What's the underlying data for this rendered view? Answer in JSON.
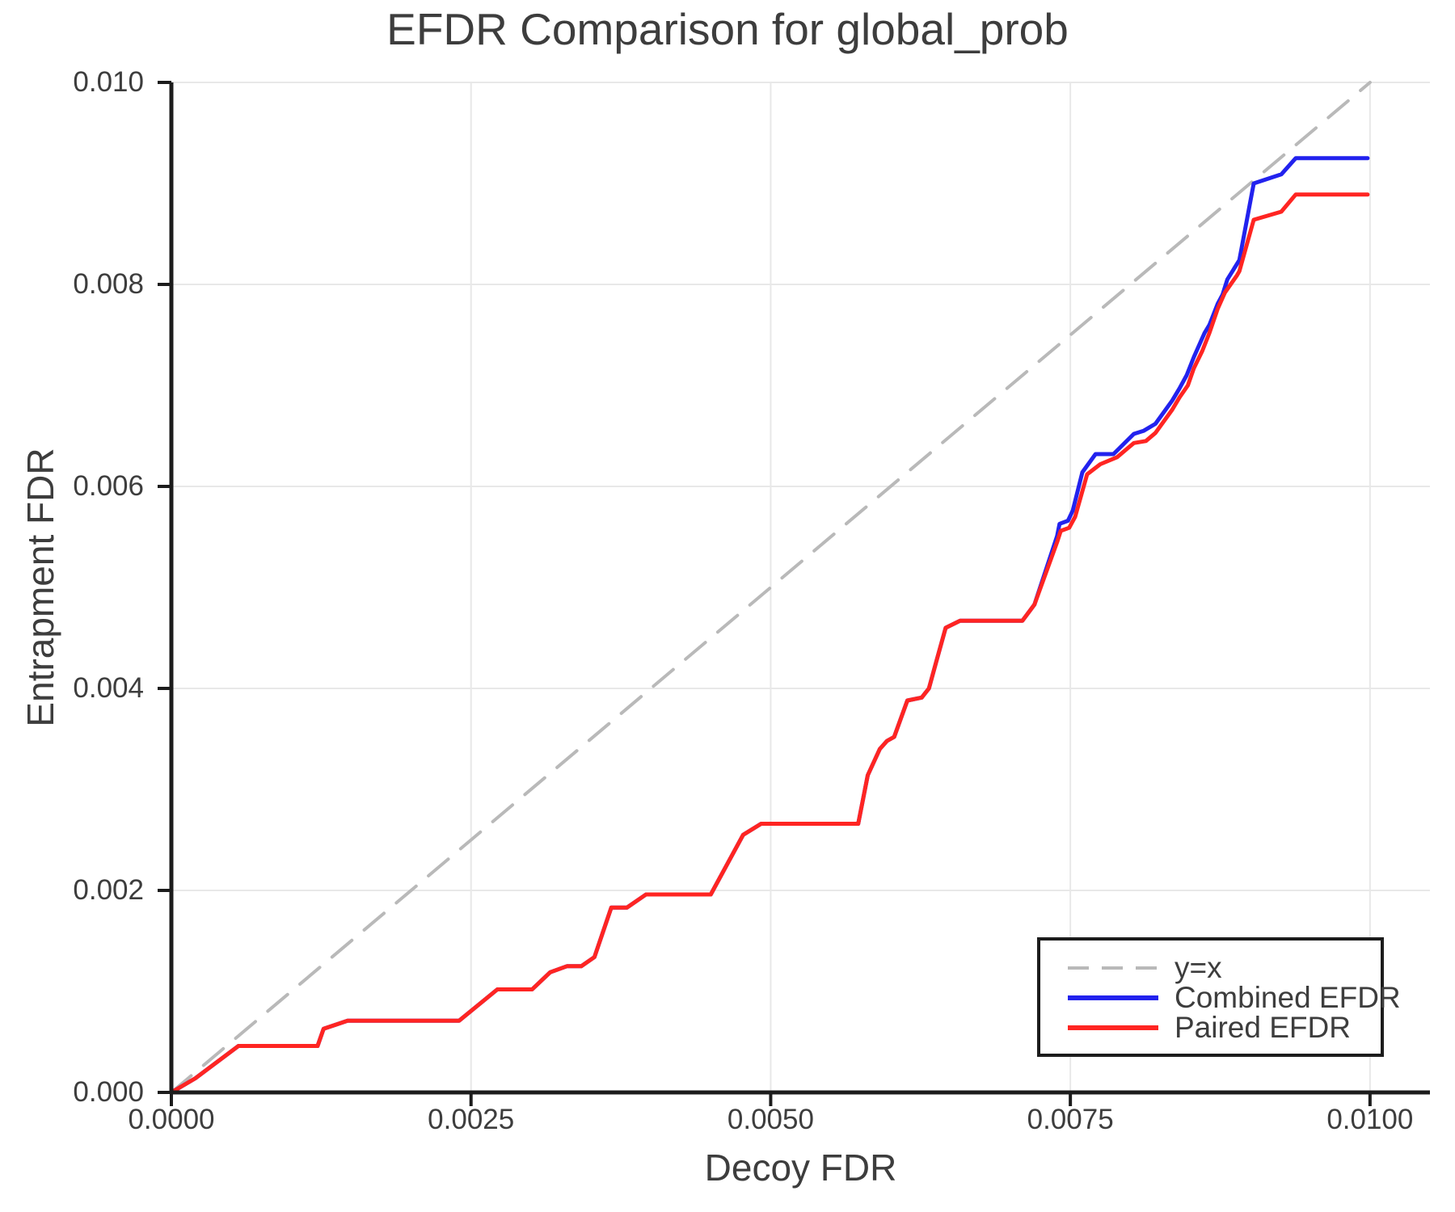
{
  "title": "EFDR Comparison for global_prob",
  "chart_data": {
    "type": "line",
    "title": "EFDR Comparison for global_prob",
    "xlabel": "Decoy FDR",
    "ylabel": "Entrapment FDR",
    "xlim": [
      0,
      0.0105
    ],
    "ylim": [
      0,
      0.01
    ],
    "grid": true,
    "legend_position": "lower right",
    "colors": {
      "identity": "#b9b9b9",
      "combined": "#2222ee",
      "paired": "#ff2522",
      "spine": "#1c1c1c",
      "gridline": "#e8e8e8",
      "text": "#3d3d3d"
    },
    "x_ticks": {
      "values": [
        0,
        0.0025,
        0.005,
        0.0075,
        0.01
      ],
      "labels": [
        "0.0000",
        "0.0025",
        "0.0050",
        "0.0075",
        "0.0100"
      ]
    },
    "y_ticks": {
      "values": [
        0,
        0.002,
        0.004,
        0.006,
        0.008,
        0.01
      ],
      "labels": [
        "0.000",
        "0.002",
        "0.004",
        "0.006",
        "0.008",
        "0.010"
      ]
    },
    "series": [
      {
        "name": "y=x",
        "color": "#b9b9b9",
        "dash": true,
        "width": 4,
        "points": [
          [
            0,
            0
          ],
          [
            0.01,
            0.01
          ]
        ]
      },
      {
        "name": "Combined EFDR",
        "color": "#2222ee",
        "dash": false,
        "width": 5,
        "points": [
          [
            0.0,
            0.0
          ],
          [
            0.0002,
            0.00014
          ],
          [
            0.00056,
            0.00046
          ],
          [
            0.00122,
            0.00046
          ],
          [
            0.00127,
            0.00063
          ],
          [
            0.00147,
            0.00071
          ],
          [
            0.0024,
            0.00071
          ],
          [
            0.00272,
            0.00102
          ],
          [
            0.00301,
            0.00102
          ],
          [
            0.00316,
            0.00119
          ],
          [
            0.0033,
            0.00125
          ],
          [
            0.00342,
            0.00125
          ],
          [
            0.00353,
            0.00134
          ],
          [
            0.00367,
            0.00183
          ],
          [
            0.0038,
            0.00183
          ],
          [
            0.00396,
            0.00196
          ],
          [
            0.0045,
            0.00196
          ],
          [
            0.00477,
            0.00255
          ],
          [
            0.00492,
            0.00266
          ],
          [
            0.00573,
            0.00266
          ],
          [
            0.00581,
            0.00314
          ],
          [
            0.00591,
            0.0034
          ],
          [
            0.00597,
            0.00348
          ],
          [
            0.00603,
            0.00352
          ],
          [
            0.00614,
            0.00388
          ],
          [
            0.00626,
            0.00391
          ],
          [
            0.00632,
            0.004
          ],
          [
            0.00638,
            0.00426
          ],
          [
            0.00646,
            0.0046
          ],
          [
            0.00658,
            0.00467
          ],
          [
            0.0071,
            0.00467
          ],
          [
            0.0072,
            0.00483
          ],
          [
            0.00739,
            0.00551
          ],
          [
            0.00741,
            0.00563
          ],
          [
            0.00748,
            0.00566
          ],
          [
            0.00752,
            0.00576
          ],
          [
            0.0076,
            0.00614
          ],
          [
            0.00771,
            0.00632
          ],
          [
            0.00786,
            0.00632
          ],
          [
            0.00803,
            0.00652
          ],
          [
            0.00811,
            0.00655
          ],
          [
            0.00821,
            0.00662
          ],
          [
            0.00835,
            0.00685
          ],
          [
            0.00841,
            0.00697
          ],
          [
            0.00847,
            0.0071
          ],
          [
            0.00853,
            0.00728
          ],
          [
            0.00862,
            0.00752
          ],
          [
            0.00866,
            0.0076
          ],
          [
            0.00873,
            0.00781
          ],
          [
            0.00877,
            0.0079
          ],
          [
            0.00881,
            0.00805
          ],
          [
            0.00891,
            0.00824
          ],
          [
            0.00903,
            0.009
          ],
          [
            0.00926,
            0.00909
          ],
          [
            0.00938,
            0.00925
          ],
          [
            0.00998,
            0.00925
          ]
        ]
      },
      {
        "name": "Paired EFDR",
        "color": "#ff2522",
        "dash": false,
        "width": 5,
        "points": [
          [
            0.0,
            0.0
          ],
          [
            0.0002,
            0.00014
          ],
          [
            0.00056,
            0.00046
          ],
          [
            0.00122,
            0.00046
          ],
          [
            0.00127,
            0.00063
          ],
          [
            0.00147,
            0.00071
          ],
          [
            0.0024,
            0.00071
          ],
          [
            0.00272,
            0.00102
          ],
          [
            0.00301,
            0.00102
          ],
          [
            0.00316,
            0.00119
          ],
          [
            0.0033,
            0.00125
          ],
          [
            0.00342,
            0.00125
          ],
          [
            0.00353,
            0.00134
          ],
          [
            0.00367,
            0.00183
          ],
          [
            0.0038,
            0.00183
          ],
          [
            0.00396,
            0.00196
          ],
          [
            0.0045,
            0.00196
          ],
          [
            0.00477,
            0.00255
          ],
          [
            0.00492,
            0.00266
          ],
          [
            0.00573,
            0.00266
          ],
          [
            0.00581,
            0.00314
          ],
          [
            0.00591,
            0.0034
          ],
          [
            0.00597,
            0.00348
          ],
          [
            0.00603,
            0.00352
          ],
          [
            0.00614,
            0.00388
          ],
          [
            0.00626,
            0.00391
          ],
          [
            0.00632,
            0.004
          ],
          [
            0.00638,
            0.00426
          ],
          [
            0.00646,
            0.0046
          ],
          [
            0.00658,
            0.00467
          ],
          [
            0.0071,
            0.00467
          ],
          [
            0.0072,
            0.00483
          ],
          [
            0.00739,
            0.00545
          ],
          [
            0.00742,
            0.00556
          ],
          [
            0.00749,
            0.00559
          ],
          [
            0.00754,
            0.0057
          ],
          [
            0.00764,
            0.00612
          ],
          [
            0.00775,
            0.00622
          ],
          [
            0.00789,
            0.00629
          ],
          [
            0.00803,
            0.00643
          ],
          [
            0.00813,
            0.00645
          ],
          [
            0.00821,
            0.00653
          ],
          [
            0.00835,
            0.00676
          ],
          [
            0.00841,
            0.00688
          ],
          [
            0.00848,
            0.007
          ],
          [
            0.00853,
            0.00717
          ],
          [
            0.0086,
            0.00734
          ],
          [
            0.00866,
            0.00752
          ],
          [
            0.00873,
            0.00776
          ],
          [
            0.00879,
            0.00792
          ],
          [
            0.00889,
            0.00809
          ],
          [
            0.00891,
            0.00813
          ],
          [
            0.00903,
            0.00864
          ],
          [
            0.00926,
            0.00872
          ],
          [
            0.00938,
            0.00889
          ],
          [
            0.00998,
            0.00889
          ]
        ]
      }
    ]
  }
}
